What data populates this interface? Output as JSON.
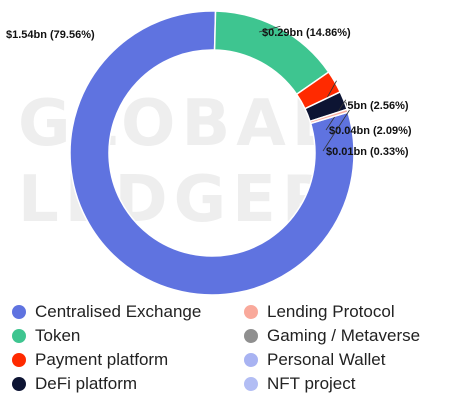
{
  "watermark": [
    "GLOBAL",
    "LEDGER"
  ],
  "chart_data": {
    "type": "pie",
    "style": "donut",
    "slices": [
      {
        "name": "Centralised Exchange",
        "value": 1.54,
        "percent": 79.56,
        "label": "$1.54bn (79.56%)",
        "color": "#5f73e0"
      },
      {
        "name": "Token",
        "value": 0.29,
        "percent": 14.86,
        "label": "$0.29bn (14.86%)",
        "color": "#3ec590"
      },
      {
        "name": "Payment platform",
        "value": 0.05,
        "percent": 2.56,
        "label": "$0.05bn (2.56%)",
        "color": "#ff2a00"
      },
      {
        "name": "DeFi platform",
        "value": 0.04,
        "percent": 2.09,
        "label": "$0.04bn (2.09%)",
        "color": "#0d1433"
      },
      {
        "name": "Lending Protocol",
        "value": 0.01,
        "percent": 0.33,
        "label": "$0.01bn (0.33%)",
        "color": "#f9a99b"
      },
      {
        "name": "Gaming / Metaverse",
        "value": 0,
        "percent": 0,
        "label": "",
        "color": "#8f8f8f"
      },
      {
        "name": "Personal Wallet",
        "value": 0,
        "percent": 0,
        "label": "",
        "color": "#a8b3f2"
      },
      {
        "name": "NFT project",
        "value": 0,
        "percent": 0,
        "label": "",
        "color": "#b2bdf4"
      }
    ],
    "legend_position": "bottom"
  }
}
